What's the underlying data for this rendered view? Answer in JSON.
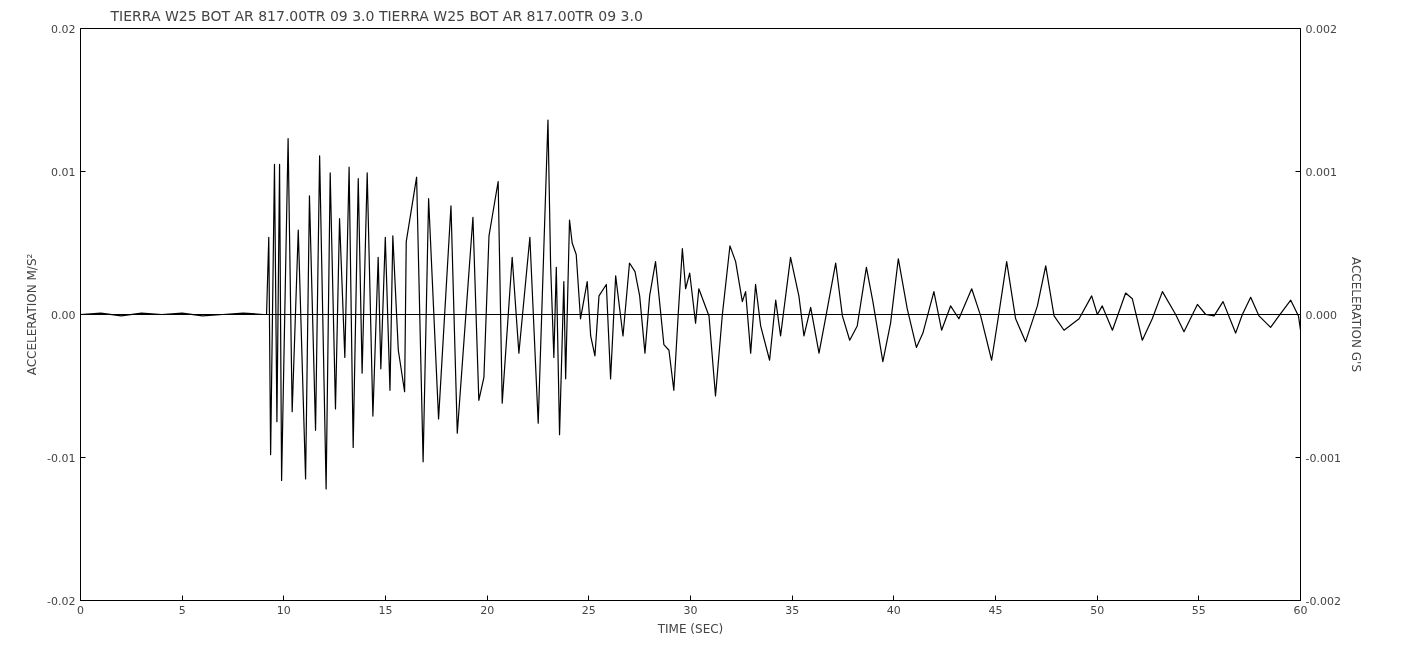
{
  "chart_data": {
    "type": "line",
    "title": "TIERRA        W25 BOT     AR              817.00TR 09   3.0              TIERRA        W25 BOT     AR              817.00TR 09   3.0",
    "xlabel": "TIME (SEC)",
    "ylabel": "ACCELERATION M/S²",
    "y2label": "ACCELERATION G'S",
    "xlim": [
      0,
      60
    ],
    "xticks": [
      0,
      5,
      10,
      15,
      20,
      25,
      30,
      35,
      40,
      45,
      50,
      55,
      60
    ],
    "ylim": [
      -0.02,
      0.02
    ],
    "yticks": [
      -0.02,
      -0.01,
      {
        "value": 0,
        "label": "0.00"
      },
      0.01,
      0.02
    ],
    "y2lim": [
      -0.002,
      0.002
    ],
    "y2ticks": [
      -0.002,
      -0.001,
      {
        "value": 0,
        "label": "0.000"
      },
      0.001,
      0.002
    ],
    "ref_lines": [
      {
        "axis": "y",
        "value": 0,
        "color": "#000000"
      }
    ],
    "x": [
      0,
      1,
      2,
      3,
      4,
      5,
      6,
      7,
      8,
      9,
      9.15,
      9.26,
      9.35,
      9.54,
      9.66,
      9.79,
      9.89,
      10.21,
      10.41,
      10.71,
      11.07,
      11.26,
      11.56,
      11.76,
      12.08,
      12.28,
      12.54,
      12.74,
      13.0,
      13.21,
      13.41,
      13.66,
      13.85,
      14.1,
      14.38,
      14.64,
      14.77,
      14.99,
      15.22,
      15.36,
      15.63,
      15.94,
      16.02,
      16.53,
      16.85,
      17.12,
      17.61,
      18.22,
      18.53,
      19.3,
      19.59,
      19.84,
      20.09,
      20.54,
      20.74,
      21.23,
      21.56,
      22.1,
      22.51,
      22.99,
      23.12,
      23.28,
      23.4,
      23.56,
      23.77,
      23.86,
      24.05,
      24.18,
      24.38,
      24.59,
      24.92,
      25.09,
      25.3,
      25.5,
      25.86,
      26.07,
      26.32,
      26.68,
      27.0,
      27.27,
      27.5,
      27.76,
      27.99,
      28.28,
      28.45,
      28.69,
      28.94,
      29.18,
      29.4,
      29.6,
      29.76,
      29.96,
      30.25,
      30.41,
      30.91,
      31.23,
      31.56,
      31.94,
      32.22,
      32.55,
      32.71,
      32.96,
      33.2,
      33.45,
      33.89,
      34.19,
      34.43,
      34.92,
      35.33,
      35.58,
      35.91,
      36.32,
      36.65,
      37.14,
      37.47,
      37.83,
      38.2,
      38.65,
      38.97,
      39.46,
      39.84,
      40.22,
      40.66,
      41.11,
      41.43,
      41.97,
      42.35,
      42.79,
      43.2,
      43.83,
      44.27,
      44.81,
      45.17,
      45.55,
      45.99,
      46.48,
      47.06,
      47.47,
      47.88,
      48.37,
      49.11,
      49.73,
      50.01,
      50.25,
      50.75,
      51.4,
      51.73,
      52.22,
      52.71,
      53.21,
      53.86,
      54.27,
      54.93,
      55.34,
      55.75,
      56.19,
      56.81,
      57.14,
      57.55,
      57.96,
      58.53,
      58.94,
      59.52,
      59.9,
      60
    ],
    "series": [
      {
        "color": "#000000",
        "values": [
          0,
          0.0001,
          -0.0001,
          0.0001,
          0,
          0.0001,
          -0.0001,
          0,
          0.0001,
          0,
          0,
          0.0054,
          -0.0098,
          0.0105,
          -0.0075,
          0.0105,
          -0.0116,
          0.0123,
          -0.0068,
          0.0059,
          -0.0115,
          0.0083,
          -0.0081,
          0.0111,
          -0.0122,
          0.0099,
          -0.0066,
          0.0067,
          -0.003,
          0.0103,
          -0.0093,
          0.0095,
          -0.0041,
          0.0099,
          -0.0071,
          0.004,
          -0.0038,
          0.0054,
          -0.0053,
          0.0055,
          -0.0025,
          -0.0054,
          0.0051,
          0.0096,
          -0.0103,
          0.0081,
          -0.0073,
          0.0076,
          -0.0083,
          0.0068,
          -0.006,
          -0.0044,
          0.0055,
          0.0093,
          -0.0062,
          0.004,
          -0.0027,
          0.0054,
          -0.0076,
          0.0136,
          0.0035,
          -0.003,
          0.0033,
          -0.0084,
          0.0023,
          -0.0045,
          0.0066,
          0.005,
          0.0042,
          -0.0003,
          0.0023,
          -0.0015,
          -0.0029,
          0.0013,
          0.0021,
          -0.0045,
          0.0027,
          -0.0015,
          0.0036,
          0.003,
          0.0013,
          -0.0027,
          0.0013,
          0.0037,
          0.0013,
          -0.0021,
          -0.0025,
          -0.0053,
          0.0001,
          0.0046,
          0.0018,
          0.0029,
          -0.0006,
          0.0018,
          -0.0001,
          -0.0057,
          -0.0001,
          0.0048,
          0.0037,
          0.0009,
          0.0016,
          -0.0027,
          0.0021,
          -0.0008,
          -0.0032,
          0.001,
          -0.0015,
          0.004,
          0.0013,
          -0.0015,
          0.0005,
          -0.0027,
          -0.0002,
          0.0036,
          -0.0001,
          -0.0018,
          -0.0008,
          0.0033,
          0.0009,
          -0.0033,
          -0.0006,
          0.0039,
          0.0004,
          -0.0023,
          -0.0013,
          0.0016,
          -0.0011,
          0.0006,
          -0.0003,
          0.0018,
          -0.0001,
          -0.0032,
          0.0001,
          0.0037,
          -0.0003,
          -0.0019,
          0.0006,
          0.0034,
          -0.0001,
          -0.0011,
          -0.0003,
          0.0013,
          0,
          0.0006,
          -0.0011,
          0.0015,
          0.0011,
          -0.0018,
          -0.0003,
          0.0016,
          0,
          -0.0012,
          0.0007,
          0,
          -0.0001,
          0.0009,
          -0.0013,
          0,
          0.0012,
          -0.0001,
          -0.0009,
          -0.0001,
          0.001,
          -0.0001,
          -0.0011
        ]
      }
    ]
  }
}
